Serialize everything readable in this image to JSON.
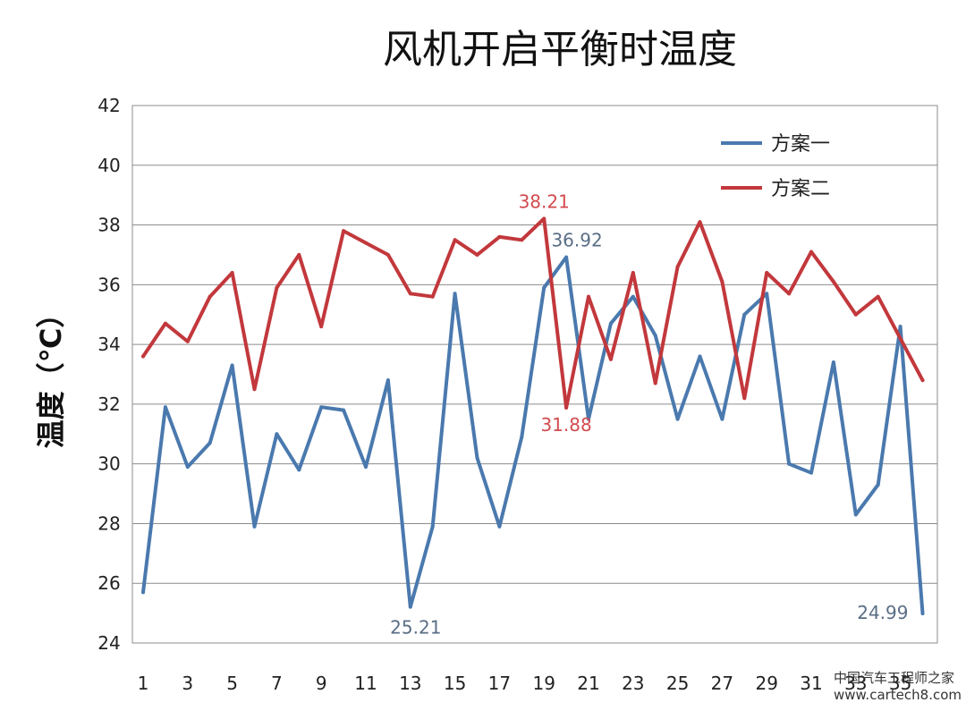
{
  "chart_data": {
    "type": "line",
    "title": "风机开启平衡时温度",
    "xlabel": "",
    "ylabel": "温度（℃）",
    "ylim": [
      24,
      42
    ],
    "yticks": [
      24,
      26,
      28,
      30,
      32,
      34,
      36,
      38,
      40,
      42
    ],
    "xticks": [
      1,
      3,
      5,
      7,
      9,
      11,
      13,
      15,
      17,
      19,
      21,
      23,
      25,
      27,
      29,
      31,
      33,
      35
    ],
    "x": [
      1,
      2,
      3,
      4,
      5,
      6,
      7,
      8,
      9,
      10,
      11,
      12,
      13,
      14,
      15,
      16,
      17,
      18,
      19,
      20,
      21,
      22,
      23,
      24,
      25,
      26,
      27,
      28,
      29,
      30,
      31,
      32,
      33,
      34,
      35,
      36
    ],
    "grid": true,
    "legend_position": "top-right",
    "series": [
      {
        "name": "方案一",
        "color": "#4A79AE",
        "values": [
          25.7,
          31.9,
          29.9,
          30.7,
          33.3,
          27.9,
          31.0,
          29.8,
          31.9,
          31.8,
          29.9,
          32.8,
          25.21,
          27.9,
          35.7,
          30.2,
          27.9,
          30.9,
          35.9,
          36.92,
          31.5,
          34.7,
          35.6,
          34.3,
          31.5,
          33.6,
          31.5,
          35.0,
          35.7,
          30.0,
          29.7,
          33.4,
          28.3,
          29.3,
          34.6,
          24.99
        ]
      },
      {
        "name": "方案二",
        "color": "#C2383C",
        "values": [
          33.6,
          34.7,
          34.1,
          35.6,
          36.4,
          32.5,
          35.9,
          37.0,
          34.6,
          37.8,
          37.4,
          37.0,
          35.7,
          35.6,
          37.5,
          37.0,
          37.6,
          37.5,
          38.21,
          31.88,
          35.6,
          33.5,
          36.4,
          32.7,
          36.6,
          38.1,
          36.1,
          32.2,
          36.4,
          35.7,
          37.1,
          36.1,
          35.0,
          35.6,
          34.2,
          32.8
        ]
      }
    ],
    "annotations": [
      {
        "text": "38.21",
        "series": 1,
        "index": 18,
        "placement": "above",
        "color": "#D24A4E"
      },
      {
        "text": "36.92",
        "series": 0,
        "index": 19,
        "placement": "above",
        "color": "#5A6E86"
      },
      {
        "text": "31.88",
        "series": 1,
        "index": 19,
        "placement": "below",
        "color": "#D24A4E"
      },
      {
        "text": "25.21",
        "series": 0,
        "index": 12,
        "placement": "below",
        "color": "#5A6E86"
      },
      {
        "text": "24.99",
        "series": 0,
        "index": 35,
        "placement": "left",
        "color": "#5A6E86"
      }
    ]
  },
  "watermark": {
    "line1": "中国汽车工程师之家",
    "line2": "www.cartech8.com"
  }
}
